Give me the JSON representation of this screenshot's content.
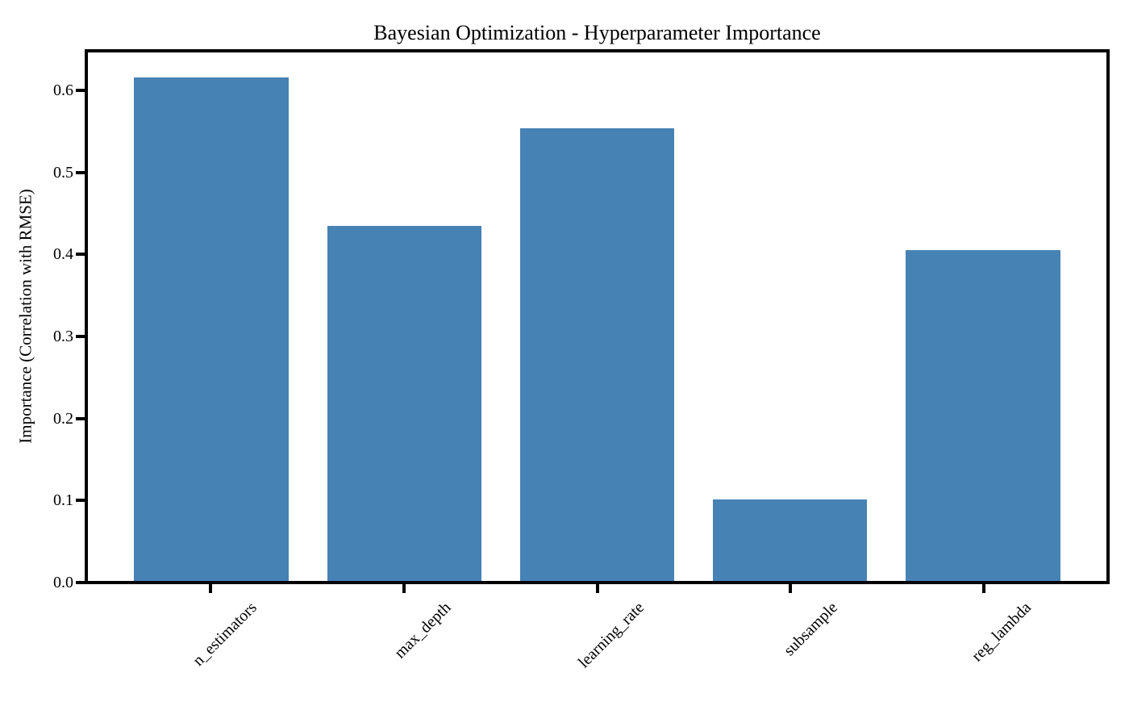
{
  "chart_data": {
    "type": "bar",
    "title": "Bayesian Optimization - Hyperparameter Importance",
    "xlabel": "",
    "ylabel": "Importance (Correlation with RMSE)",
    "categories": [
      "n_estimators",
      "max_depth",
      "learning_rate",
      "subsample",
      "reg_lambda"
    ],
    "values": [
      0.617,
      0.435,
      0.555,
      0.1,
      0.406
    ],
    "ylim": [
      0,
      0.648
    ],
    "yticks": [
      0.0,
      0.1,
      0.2,
      0.3,
      0.4,
      0.5,
      0.6
    ],
    "ytick_labels": [
      "0.0",
      "0.1",
      "0.2",
      "0.3",
      "0.4",
      "0.5",
      "0.6"
    ],
    "x_tick_rotation": 45,
    "grid": false,
    "legend_position": "none",
    "bar_color": "#4682B4",
    "axis_color": "#000000",
    "background_color": "#FFFFFF",
    "bar_width_fraction": 0.8,
    "x_axis_margin": 0.64
  }
}
